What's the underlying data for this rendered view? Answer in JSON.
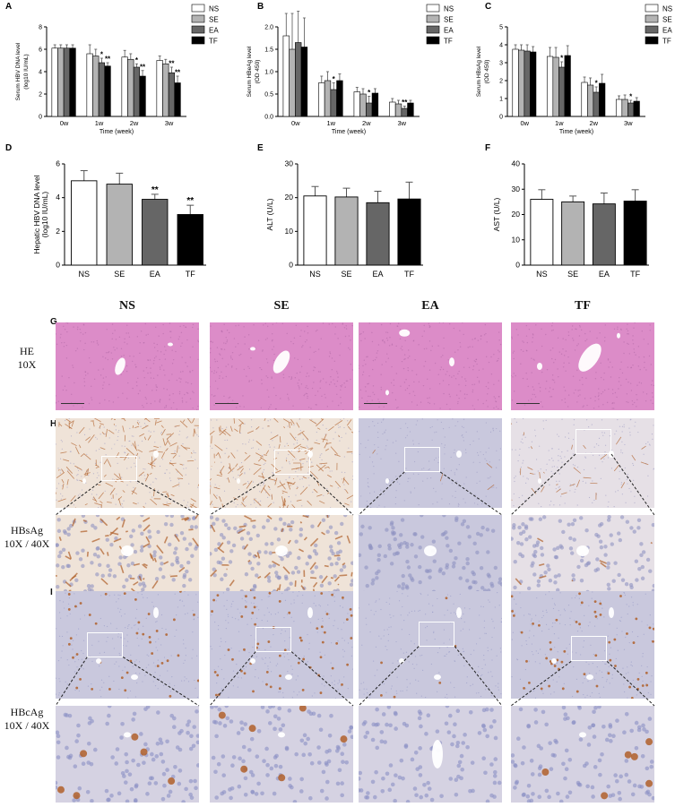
{
  "chart_data": [
    {
      "panel": "A",
      "type": "bar",
      "ylabel_line1": "Serum HBV DNA level",
      "ylabel_line2": "(log10 IU/mL)",
      "xlabel": "Time (week)",
      "categories": [
        "0w",
        "1w",
        "2w",
        "3w"
      ],
      "ylim": [
        0,
        8
      ],
      "yticks": [
        0,
        2,
        4,
        6,
        8
      ],
      "series": [
        {
          "name": "NS",
          "values": [
            6.1,
            5.6,
            5.3,
            5.0
          ],
          "err": [
            0.3,
            0.8,
            0.6,
            0.4
          ],
          "sig": [
            "",
            "",
            "",
            ""
          ]
        },
        {
          "name": "SE",
          "values": [
            6.1,
            5.4,
            5.1,
            4.7
          ],
          "err": [
            0.3,
            0.6,
            0.5,
            0.4
          ],
          "sig": [
            "",
            "",
            "",
            ""
          ]
        },
        {
          "name": "EA",
          "values": [
            6.1,
            4.8,
            4.4,
            3.9
          ],
          "err": [
            0.3,
            0.4,
            0.3,
            0.5
          ],
          "sig": [
            "",
            "*",
            "*",
            "**"
          ]
        },
        {
          "name": "TF",
          "values": [
            6.1,
            4.5,
            3.6,
            3.0
          ],
          "err": [
            0.3,
            0.3,
            0.5,
            0.6
          ],
          "sig": [
            "",
            "**",
            "**",
            "**"
          ]
        }
      ]
    },
    {
      "panel": "B",
      "type": "bar",
      "ylabel_line1": "Serum HBeAg level",
      "ylabel_line2": "(OD 450)",
      "xlabel": "Time (week)",
      "categories": [
        "0w",
        "1w",
        "2w",
        "3w"
      ],
      "ylim": [
        0,
        2
      ],
      "yticks": [
        0.0,
        0.5,
        1.0,
        1.5,
        2.0
      ],
      "series": [
        {
          "name": "NS",
          "values": [
            1.8,
            0.75,
            0.55,
            0.32
          ],
          "err": [
            0.5,
            0.15,
            0.1,
            0.08
          ],
          "sig": [
            "",
            "",
            "",
            ""
          ]
        },
        {
          "name": "SE",
          "values": [
            1.5,
            0.8,
            0.5,
            0.28
          ],
          "err": [
            0.8,
            0.2,
            0.12,
            0.08
          ],
          "sig": [
            "",
            "",
            "",
            ""
          ]
        },
        {
          "name": "EA",
          "values": [
            1.65,
            0.6,
            0.3,
            0.18
          ],
          "err": [
            0.7,
            0.15,
            0.15,
            0.05
          ],
          "sig": [
            "",
            "*",
            "*",
            "**"
          ]
        },
        {
          "name": "TF",
          "values": [
            1.55,
            0.8,
            0.52,
            0.3
          ],
          "err": [
            0.65,
            0.15,
            0.1,
            0.06
          ],
          "sig": [
            "",
            "",
            "",
            ""
          ]
        }
      ]
    },
    {
      "panel": "C",
      "type": "bar",
      "ylabel_line1": "Serum HBsAg level",
      "ylabel_line2": "(OD 450)",
      "xlabel": "Time (week)",
      "categories": [
        "0w",
        "1w",
        "2w",
        "3w"
      ],
      "ylim": [
        0,
        5
      ],
      "yticks": [
        0,
        1,
        2,
        3,
        4,
        5
      ],
      "series": [
        {
          "name": "NS",
          "values": [
            3.75,
            3.35,
            1.9,
            0.95
          ],
          "err": [
            0.25,
            0.5,
            0.3,
            0.2
          ],
          "sig": [
            "",
            "",
            "",
            ""
          ]
        },
        {
          "name": "SE",
          "values": [
            3.7,
            3.3,
            1.75,
            0.95
          ],
          "err": [
            0.3,
            0.55,
            0.4,
            0.25
          ],
          "sig": [
            "",
            "",
            "",
            ""
          ]
        },
        {
          "name": "EA",
          "values": [
            3.65,
            2.75,
            1.35,
            0.75
          ],
          "err": [
            0.35,
            0.3,
            0.3,
            0.15
          ],
          "sig": [
            "",
            "*",
            "*",
            "*"
          ]
        },
        {
          "name": "TF",
          "values": [
            3.6,
            3.4,
            1.85,
            0.85
          ],
          "err": [
            0.3,
            0.55,
            0.5,
            0.2
          ],
          "sig": [
            "",
            "",
            "",
            ""
          ]
        }
      ]
    },
    {
      "panel": "D",
      "type": "bar",
      "ylabel_line1": "Hepatic HBV DNA level",
      "ylabel_line2": "(log10 IU/mL)",
      "categories": [
        "NS",
        "SE",
        "EA",
        "TF"
      ],
      "ylim": [
        0,
        6
      ],
      "yticks": [
        0,
        2,
        4,
        6
      ],
      "values": [
        5.0,
        4.8,
        3.9,
        3.0
      ],
      "err": [
        0.6,
        0.65,
        0.3,
        0.55
      ],
      "sig": [
        "",
        "",
        "**",
        "**"
      ],
      "colors": [
        "#ffffff",
        "#b3b3b3",
        "#666666",
        "#000000"
      ]
    },
    {
      "panel": "E",
      "type": "bar",
      "ylabel_line1": "ALT (U/L)",
      "ylabel_line2": "",
      "categories": [
        "NS",
        "SE",
        "EA",
        "TF"
      ],
      "ylim": [
        0,
        30
      ],
      "yticks": [
        0,
        10,
        20,
        30
      ],
      "values": [
        20.5,
        20.2,
        18.5,
        19.6
      ],
      "err": [
        2.8,
        2.6,
        3.4,
        5.0
      ],
      "sig": [
        "",
        "",
        "",
        ""
      ],
      "colors": [
        "#ffffff",
        "#b3b3b3",
        "#666666",
        "#000000"
      ]
    },
    {
      "panel": "F",
      "type": "bar",
      "ylabel_line1": "AST (U/L)",
      "ylabel_line2": "",
      "categories": [
        "NS",
        "SE",
        "EA",
        "TF"
      ],
      "ylim": [
        0,
        40
      ],
      "yticks": [
        0,
        10,
        20,
        30,
        40
      ],
      "values": [
        26.0,
        25.0,
        24.2,
        25.3
      ],
      "err": [
        3.8,
        2.3,
        4.3,
        4.5
      ],
      "sig": [
        "",
        "",
        "",
        ""
      ],
      "colors": [
        "#ffffff",
        "#b3b3b3",
        "#666666",
        "#000000"
      ]
    }
  ],
  "legend_colors": {
    "NS": "#ffffff",
    "SE": "#b3b3b3",
    "EA": "#666666",
    "TF": "#000000"
  },
  "histology": {
    "columns": [
      "NS",
      "SE",
      "EA",
      "TF"
    ],
    "panel_letters": {
      "G": "G",
      "H": "H",
      "I": "I"
    },
    "rows": [
      {
        "id": "he",
        "line1": "HE",
        "line2": "10X"
      },
      {
        "id": "hbsag",
        "line1": "HBsAg",
        "line2": "10X / 40X"
      },
      {
        "id": "hbcag",
        "line1": "HBcAg",
        "line2": "10X / 40X"
      }
    ],
    "colors": {
      "he": "#dc8cc8",
      "ihc_brown_bg": "#efe3d8",
      "ihc_blue_bg": "#c9c8dd",
      "brown_stain": "#b0602a",
      "nuclei": "#8f92c2"
    }
  }
}
